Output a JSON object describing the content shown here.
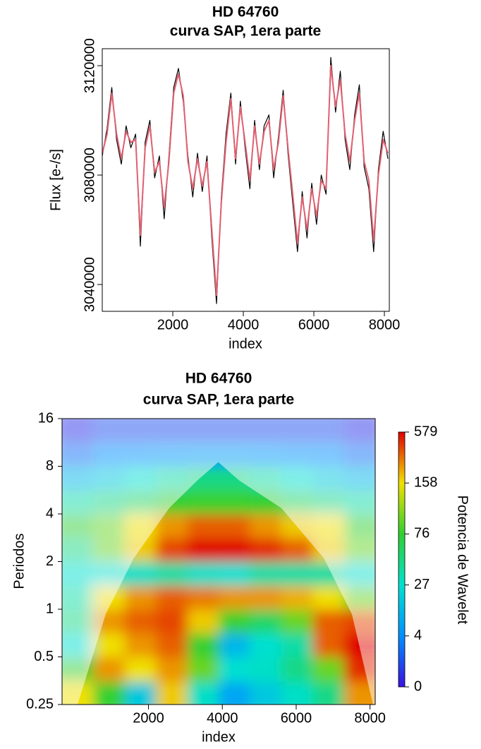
{
  "chart_data": [
    {
      "type": "line",
      "title": "HD 64760",
      "subtitle": "curva SAP, 1era parte",
      "x_label": "index",
      "y_label": "Flux [e-/s]",
      "xlim": [
        0,
        8140
      ],
      "ylim": [
        3030200,
        3126200
      ],
      "xticks": [
        2000,
        4000,
        6000,
        8000
      ],
      "yticks": [
        3040000,
        3080000,
        3120000
      ],
      "x": [
        0,
        135,
        270,
        405,
        540,
        675,
        810,
        945,
        1080,
        1215,
        1350,
        1485,
        1620,
        1755,
        1890,
        2025,
        2160,
        2295,
        2430,
        2565,
        2700,
        2835,
        2970,
        3105,
        3240,
        3375,
        3510,
        3645,
        3780,
        3915,
        4050,
        4185,
        4320,
        4455,
        4590,
        4725,
        4860,
        4995,
        5130,
        5265,
        5400,
        5535,
        5670,
        5805,
        5940,
        6075,
        6210,
        6345,
        6480,
        6615,
        6750,
        6885,
        7020,
        7155,
        7290,
        7425,
        7560,
        7695,
        7830,
        7965,
        8100
      ],
      "series": [
        {
          "color": "#000000",
          "values": [
            3087000,
            3097000,
            3112000,
            3093000,
            3084000,
            3098000,
            3090000,
            3095000,
            3054000,
            3092000,
            3100000,
            3079000,
            3087000,
            3064000,
            3087000,
            3112000,
            3119000,
            3107000,
            3087000,
            3072000,
            3088000,
            3074000,
            3087000,
            3057000,
            3033000,
            3072000,
            3095000,
            3110000,
            3084000,
            3107000,
            3090000,
            3075000,
            3100000,
            3082000,
            3098000,
            3102000,
            3079000,
            3094000,
            3111000,
            3088000,
            3070000,
            3052000,
            3074000,
            3057000,
            3077000,
            3062000,
            3080000,
            3073000,
            3123000,
            3103000,
            3118000,
            3093000,
            3082000,
            3102000,
            3113000,
            3083000,
            3075000,
            3052000,
            3082000,
            3096000,
            3086000
          ]
        },
        {
          "color": "#e06070",
          "values": [
            3088000,
            3095000,
            3110000,
            3095000,
            3086000,
            3096000,
            3092000,
            3093000,
            3058000,
            3090000,
            3098000,
            3081000,
            3085000,
            3068000,
            3085000,
            3110000,
            3117000,
            3109000,
            3085000,
            3075000,
            3086000,
            3076000,
            3085000,
            3060000,
            3036000,
            3070000,
            3092000,
            3108000,
            3086000,
            3105000,
            3092000,
            3078000,
            3098000,
            3084000,
            3096000,
            3100000,
            3082000,
            3092000,
            3109000,
            3090000,
            3073000,
            3055000,
            3072000,
            3060000,
            3075000,
            3065000,
            3078000,
            3075000,
            3120000,
            3105000,
            3115000,
            3095000,
            3085000,
            3100000,
            3110000,
            3085000,
            3078000,
            3056000,
            3080000,
            3093000,
            3088000
          ]
        }
      ]
    },
    {
      "type": "heatmap",
      "title": "HD 64760",
      "subtitle": "curva SAP, 1era parte",
      "x_label": "index",
      "y_label": "Periodos",
      "colorbar_label": "Potencia de Wavelet",
      "xlim": [
        -340,
        8140
      ],
      "ylim": [
        0.25,
        16
      ],
      "log_y": true,
      "xticks": [
        2000,
        4000,
        6000,
        8000
      ],
      "yticks": [
        0.25,
        0.5,
        1,
        2,
        4,
        8,
        16
      ],
      "x_bins": [
        -340,
        508,
        1356,
        2204,
        3052,
        3900,
        4748,
        5596,
        6444,
        7292,
        8140
      ],
      "y_bins": [
        0.25,
        0.35,
        0.5,
        0.71,
        1,
        1.41,
        2,
        2.83,
        4,
        5.66,
        8,
        11.31,
        16
      ],
      "z": [
        [
          158,
          76,
          20,
          200,
          30,
          10,
          20,
          30,
          50,
          300
        ],
        [
          76,
          300,
          158,
          300,
          100,
          27,
          30,
          50,
          100,
          500
        ],
        [
          27,
          158,
          300,
          400,
          76,
          15,
          27,
          40,
          400,
          579
        ],
        [
          50,
          300,
          400,
          450,
          200,
          80,
          60,
          100,
          400,
          450
        ],
        [
          40,
          158,
          300,
          400,
          350,
          300,
          300,
          250,
          158,
          100
        ],
        [
          27,
          27,
          30,
          40,
          30,
          27,
          40,
          40,
          40,
          27
        ],
        [
          50,
          100,
          200,
          450,
          579,
          579,
          500,
          400,
          200,
          100
        ],
        [
          76,
          100,
          158,
          300,
          400,
          400,
          300,
          200,
          158,
          76
        ],
        [
          40,
          50,
          60,
          76,
          80,
          80,
          76,
          60,
          50,
          40
        ],
        [
          15,
          20,
          27,
          40,
          50,
          50,
          40,
          27,
          20,
          15
        ],
        [
          3,
          4,
          5,
          6,
          7,
          7,
          6,
          5,
          4,
          3
        ],
        [
          1,
          2,
          2,
          2,
          2,
          2,
          2,
          2,
          2,
          1
        ]
      ],
      "colorbar": {
        "ticks": [
          0,
          4,
          27,
          76,
          158,
          579
        ],
        "colors": [
          "#3a10e0",
          "#0090ff",
          "#00e0d0",
          "#30d030",
          "#f0e000",
          "#e00000"
        ]
      },
      "coi": {
        "x": [
          80,
          840,
          1600,
          2560,
          3320,
          3890,
          4460,
          5600,
          6750,
          7510,
          8080
        ],
        "period": [
          0.25,
          0.93,
          2.1,
          4.35,
          6.5,
          8.5,
          6.5,
          4.35,
          2.1,
          0.93,
          0.25
        ]
      }
    }
  ]
}
